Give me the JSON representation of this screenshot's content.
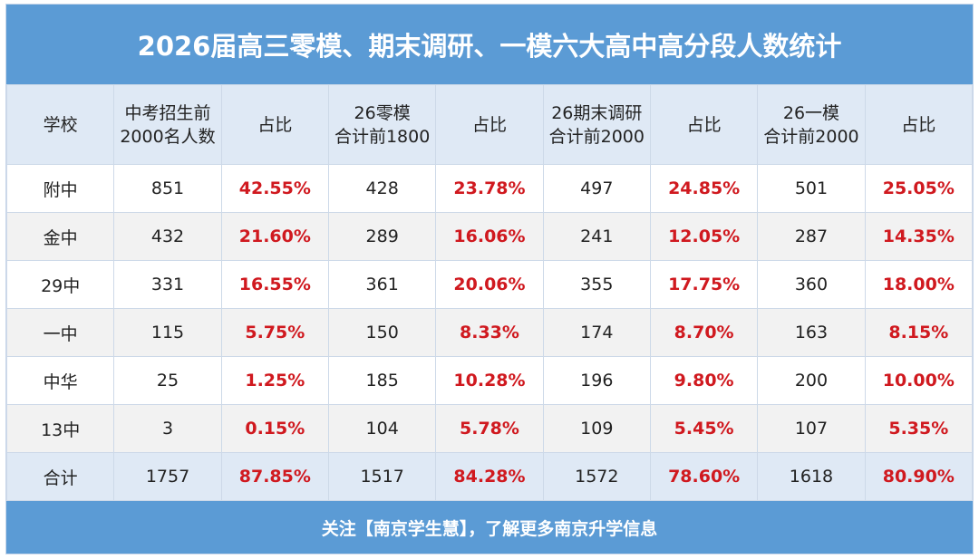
{
  "title": "2026届高三零模、期末调研、一模六大高中高分段人数统计",
  "headers": [
    [
      "学校"
    ],
    [
      "中考招生前",
      "2000名人数"
    ],
    [
      "占比"
    ],
    [
      "26零模",
      "合计前1800"
    ],
    [
      "占比"
    ],
    [
      "26期末调研",
      "合计前2000"
    ],
    [
      "占比"
    ],
    [
      "26一模",
      "合计前2000"
    ],
    [
      "占比"
    ]
  ],
  "rows": [
    [
      "附中",
      "851",
      "42.55%",
      "428",
      "23.78%",
      "497",
      "24.85%",
      "501",
      "25.05%"
    ],
    [
      "金中",
      "432",
      "21.60%",
      "289",
      "16.06%",
      "241",
      "12.05%",
      "287",
      "14.35%"
    ],
    [
      "29中",
      "331",
      "16.55%",
      "361",
      "20.06%",
      "355",
      "17.75%",
      "360",
      "18.00%"
    ],
    [
      "一中",
      "115",
      "5.75%",
      "150",
      "8.33%",
      "174",
      "8.70%",
      "163",
      "8.15%"
    ],
    [
      "中华",
      "25",
      "1.25%",
      "185",
      "10.28%",
      "196",
      "9.80%",
      "200",
      "10.00%"
    ],
    [
      "13中",
      "3",
      "0.15%",
      "104",
      "5.78%",
      "109",
      "5.45%",
      "107",
      "5.35%"
    ]
  ],
  "total": [
    "合计",
    "1757",
    "87.85%",
    "1517",
    "84.28%",
    "1572",
    "78.60%",
    "1618",
    "80.90%"
  ],
  "footer": "关注【南京学生慧】，了解更多南京升学信息",
  "colors": {
    "accent": "#5b9bd5",
    "header_bg": "#dfe9f5",
    "percent_text": "#d0191f"
  }
}
